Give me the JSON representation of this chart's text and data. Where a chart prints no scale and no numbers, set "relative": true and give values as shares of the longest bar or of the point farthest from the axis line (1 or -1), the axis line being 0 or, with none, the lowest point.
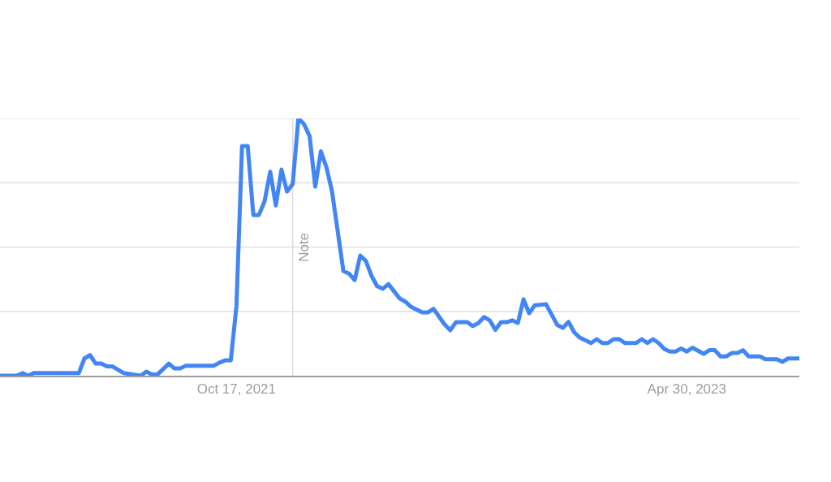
{
  "chart_data": {
    "type": "line",
    "relative": true,
    "grid": "y",
    "marker": "none",
    "line_style": "solid",
    "xlim": [
      "2020-12-27",
      "2023-09-17"
    ],
    "xticks": [
      {
        "value": "2021-10-17",
        "label": "Oct 17, 2021"
      },
      {
        "value": "2023-04-30",
        "label": "Apr 30, 2023"
      }
    ],
    "ref_lines": [
      {
        "axis": "x",
        "value": "2021-12-26",
        "label": "Note",
        "color": "#dadce0"
      }
    ],
    "series": [
      {
        "color": "#4285f4",
        "x": [
          "2020-12-27",
          "2021-01-17",
          "2021-01-24",
          "2021-01-31",
          "2021-02-07",
          "2021-04-04",
          "2021-04-11",
          "2021-04-18",
          "2021-04-25",
          "2021-05-02",
          "2021-05-09",
          "2021-05-16",
          "2021-05-30",
          "2021-06-20",
          "2021-06-27",
          "2021-07-04",
          "2021-07-11",
          "2021-07-25",
          "2021-08-01",
          "2021-08-08",
          "2021-08-15",
          "2021-09-19",
          "2021-09-26",
          "2021-10-03",
          "2021-10-10",
          "2021-10-17",
          "2021-10-24",
          "2021-10-31",
          "2021-11-07",
          "2021-11-14",
          "2021-11-21",
          "2021-11-28",
          "2021-12-05",
          "2021-12-12",
          "2021-12-19",
          "2021-12-26",
          "2022-01-02",
          "2022-01-09",
          "2022-01-16",
          "2022-01-23",
          "2022-01-30",
          "2022-02-06",
          "2022-02-13",
          "2022-02-27",
          "2022-03-06",
          "2022-03-13",
          "2022-03-20",
          "2022-03-27",
          "2022-04-03",
          "2022-04-10",
          "2022-04-17",
          "2022-04-24",
          "2022-05-08",
          "2022-05-15",
          "2022-05-22",
          "2022-06-05",
          "2022-06-12",
          "2022-06-19",
          "2022-07-03",
          "2022-07-10",
          "2022-07-17",
          "2022-07-31",
          "2022-08-07",
          "2022-08-14",
          "2022-08-21",
          "2022-08-28",
          "2022-09-04",
          "2022-09-11",
          "2022-09-18",
          "2022-09-25",
          "2022-10-02",
          "2022-10-09",
          "2022-10-16",
          "2022-10-23",
          "2022-11-06",
          "2022-11-20",
          "2022-11-27",
          "2022-12-04",
          "2022-12-11",
          "2022-12-18",
          "2023-01-01",
          "2023-01-08",
          "2023-01-15",
          "2023-01-22",
          "2023-01-29",
          "2023-02-05",
          "2023-02-12",
          "2023-02-26",
          "2023-03-05",
          "2023-03-12",
          "2023-03-19",
          "2023-03-26",
          "2023-04-02",
          "2023-04-09",
          "2023-04-16",
          "2023-04-23",
          "2023-04-30",
          "2023-05-07",
          "2023-05-21",
          "2023-05-28",
          "2023-06-04",
          "2023-06-11",
          "2023-06-18",
          "2023-06-25",
          "2023-07-02",
          "2023-07-09",
          "2023-07-16",
          "2023-07-30",
          "2023-08-06",
          "2023-08-20",
          "2023-08-27",
          "2023-09-03",
          "2023-09-17"
        ],
        "values": [
          0,
          0,
          0.01,
          0,
          0.01,
          0.01,
          0.067,
          0.08,
          0.047,
          0.047,
          0.036,
          0.036,
          0.01,
          0,
          0.016,
          0.005,
          0.005,
          0.047,
          0.028,
          0.028,
          0.039,
          0.039,
          0.051,
          0.06,
          0.06,
          0.27,
          0.893,
          0.893,
          0.625,
          0.625,
          0.678,
          0.793,
          0.662,
          0.801,
          0.716,
          0.745,
          1,
          0.978,
          0.931,
          0.735,
          0.872,
          0.809,
          0.714,
          0.407,
          0.397,
          0.372,
          0.467,
          0.446,
          0.388,
          0.348,
          0.338,
          0.356,
          0.3,
          0.288,
          0.268,
          0.246,
          0.246,
          0.26,
          0.199,
          0.177,
          0.208,
          0.208,
          0.193,
          0.205,
          0.228,
          0.215,
          0.178,
          0.208,
          0.208,
          0.215,
          0.205,
          0.297,
          0.243,
          0.274,
          0.278,
          0.197,
          0.186,
          0.209,
          0.169,
          0.148,
          0.127,
          0.142,
          0.127,
          0.127,
          0.142,
          0.142,
          0.127,
          0.127,
          0.142,
          0.127,
          0.142,
          0.127,
          0.104,
          0.094,
          0.094,
          0.106,
          0.094,
          0.109,
          0.085,
          0.099,
          0.099,
          0.075,
          0.075,
          0.088,
          0.088,
          0.099,
          0.075,
          0.075,
          0.064,
          0.064,
          0.054,
          0.067,
          0.067
        ]
      }
    ]
  }
}
